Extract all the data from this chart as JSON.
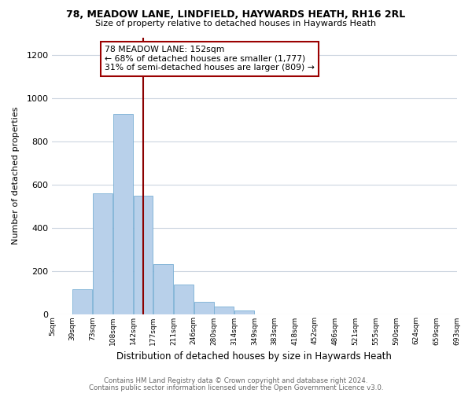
{
  "title1": "78, MEADOW LANE, LINDFIELD, HAYWARDS HEATH, RH16 2RL",
  "title2": "Size of property relative to detached houses in Haywards Heath",
  "xlabel": "Distribution of detached houses by size in Haywards Heath",
  "ylabel": "Number of detached properties",
  "footer1": "Contains HM Land Registry data © Crown copyright and database right 2024.",
  "footer2": "Contains public sector information licensed under the Open Government Licence v3.0.",
  "bin_labels": [
    "5sqm",
    "39sqm",
    "73sqm",
    "108sqm",
    "142sqm",
    "177sqm",
    "211sqm",
    "246sqm",
    "280sqm",
    "314sqm",
    "349sqm",
    "383sqm",
    "418sqm",
    "452sqm",
    "486sqm",
    "521sqm",
    "555sqm",
    "590sqm",
    "624sqm",
    "659sqm",
    "693sqm"
  ],
  "bar_heights": [
    0,
    113,
    558,
    925,
    548,
    230,
    137,
    58,
    35,
    18,
    0,
    0,
    0,
    0,
    0,
    0,
    0,
    0,
    0,
    0
  ],
  "bar_color": "#b8d0ea",
  "bar_edge_color": "#7aafd4",
  "vline_color": "#8b0000",
  "annotation_line1": "78 MEADOW LANE: 152sqm",
  "annotation_line2": "← 68% of detached houses are smaller (1,777)",
  "annotation_line3": "31% of semi-detached houses are larger (809) →",
  "annotation_box_color": "#ffffff",
  "annotation_box_edge": "#9b0000",
  "ylim": [
    0,
    1280
  ],
  "yticks": [
    0,
    200,
    400,
    600,
    800,
    1000,
    1200
  ],
  "background_color": "#ffffff",
  "grid_color": "#ccd5e0"
}
